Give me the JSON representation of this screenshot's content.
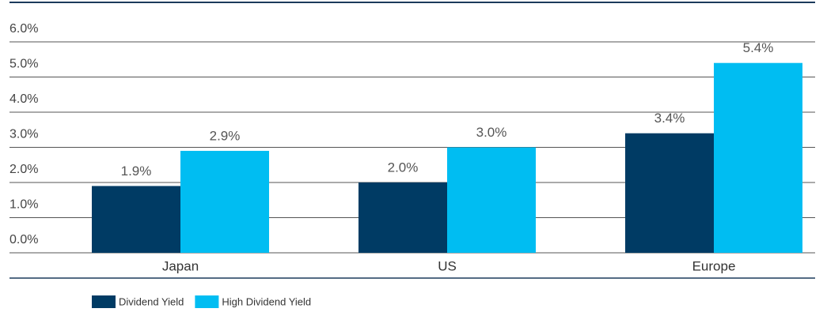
{
  "chart_data": {
    "type": "bar",
    "categories": [
      "Japan",
      "US",
      "Europe"
    ],
    "series": [
      {
        "name": "Dividend Yield",
        "color": "#003b64",
        "values": [
          1.9,
          2.0,
          3.4
        ],
        "value_labels": [
          "1.9%",
          "2.0%",
          "3.4%"
        ]
      },
      {
        "name": "High Dividend Yield",
        "color": "#00bdf2",
        "values": [
          2.9,
          3.0,
          5.4
        ],
        "value_labels": [
          "2.9%",
          "3.0%",
          "5.4%"
        ]
      }
    ],
    "ylim": [
      0,
      6
    ],
    "yticks": [
      {
        "value": 0,
        "label": "0.0%"
      },
      {
        "value": 1,
        "label": "1.0%"
      },
      {
        "value": 2,
        "label": "2.0%"
      },
      {
        "value": 3,
        "label": "3.0%"
      },
      {
        "value": 4,
        "label": "4.0%"
      },
      {
        "value": 5,
        "label": "5.0%"
      },
      {
        "value": 6,
        "label": "6.0%"
      }
    ],
    "grid": true
  }
}
